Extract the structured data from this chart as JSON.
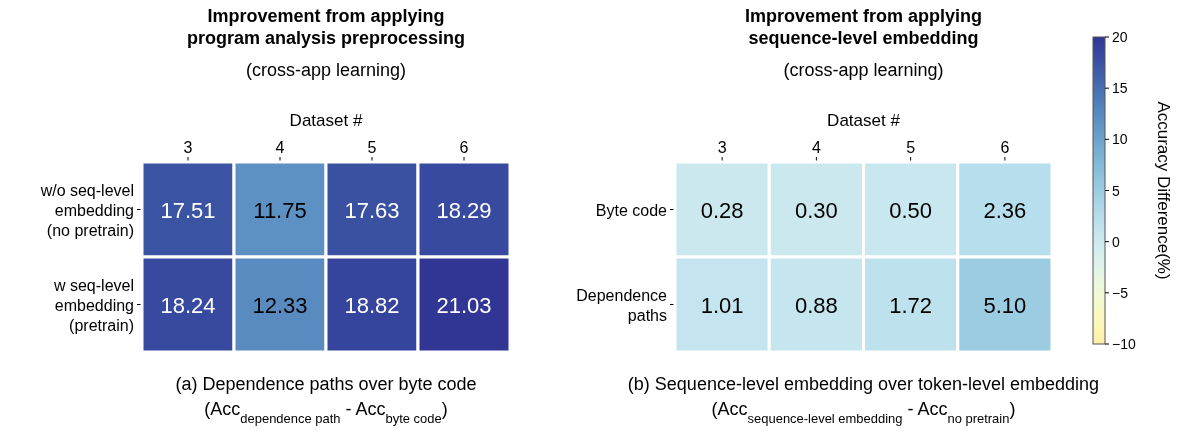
{
  "chart_data": [
    {
      "type": "heatmap",
      "title": "Improvement from applying\nprogram analysis preprocessing",
      "subtitle": "(cross-app learning)",
      "xlabel": "Dataset #",
      "categories": [
        "3",
        "4",
        "5",
        "6"
      ],
      "y_categories": [
        "w/o seq-level\nembedding\n(no pretrain)",
        "w seq-level\nembedding\n(pretrain)"
      ],
      "cells": [
        [
          17.51,
          11.75,
          17.63,
          18.29
        ],
        [
          18.24,
          12.33,
          18.82,
          21.03
        ]
      ],
      "data_labels": true,
      "annotations": [
        "(a) Dependence paths over byte code",
        "(Acc$_{dependence path}$ - Acc$_{byte code}$)"
      ]
    },
    {
      "type": "heatmap",
      "title": "Improvement from applying\nsequence-level embedding",
      "subtitle": "(cross-app learning)",
      "xlabel": "Dataset #",
      "categories": [
        "3",
        "4",
        "5",
        "6"
      ],
      "y_categories": [
        "Byte code",
        "Dependence\npaths"
      ],
      "cells": [
        [
          0.28,
          0.3,
          0.5,
          2.36
        ],
        [
          1.01,
          0.88,
          1.72,
          5.1
        ]
      ],
      "data_labels": true,
      "cell_labels": [
        [
          "0.28",
          "0.30",
          "0.50",
          "2.36"
        ],
        [
          "1.01",
          "0.88",
          "1.72",
          "5.10"
        ]
      ],
      "clim": [
        -10,
        20
      ],
      "cticks": [
        {
          "value": -10,
          "label": "−10"
        },
        {
          "value": -5,
          "label": "−5"
        },
        0,
        5,
        10,
        15,
        20
      ],
      "clabel": "Accuracy Difference(%)",
      "annotations": [
        "(b) Sequence-level embedding over token-level embedding",
        "(Acc$_{sequence-level embedding}$ - Acc$_{no pretrain}$)"
      ]
    }
  ]
}
